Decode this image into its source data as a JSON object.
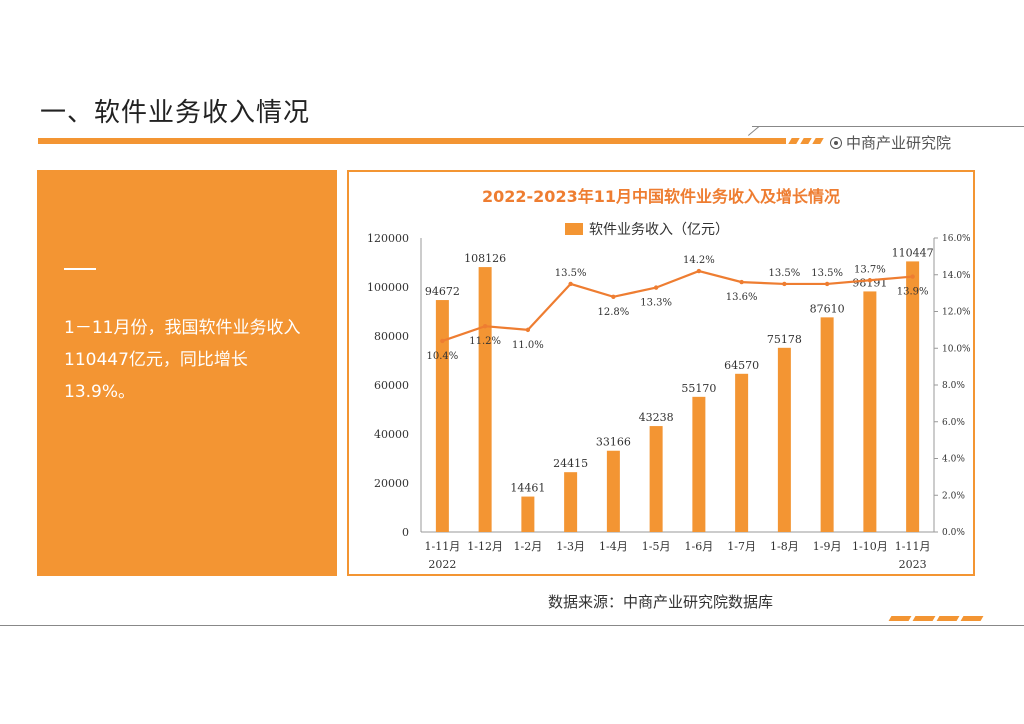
{
  "page": {
    "title": "一、软件业务收入情况",
    "logo_text": "中商产业研究院",
    "summary": "1－11月份，我国软件业务收入110447亿元，同比增长13.9%。",
    "source": "数据来源：中商产业研究院数据库",
    "accent_color": "#f39533"
  },
  "chart_data": {
    "type": "bar",
    "title": "2022-2023年11月中国软件业务收入及增长情况",
    "categories": [
      "1-11月",
      "1-12月",
      "1-2月",
      "1-3月",
      "1-4月",
      "1-5月",
      "1-6月",
      "1-7月",
      "1-8月",
      "1-9月",
      "1-10月",
      "1-11月"
    ],
    "year_labels": [
      "2022",
      "2023"
    ],
    "series": [
      {
        "name": "软件业务收入（亿元）",
        "type": "bar",
        "axis": "left",
        "color": "#f39533",
        "values": [
          94672,
          108126,
          14461,
          24415,
          33166,
          43238,
          55170,
          64570,
          75178,
          87610,
          98191,
          110447
        ]
      },
      {
        "type": "line",
        "axis": "right",
        "color": "#ee7d31",
        "values": [
          10.4,
          11.2,
          11.0,
          13.5,
          12.8,
          13.3,
          14.2,
          13.6,
          13.5,
          13.5,
          13.7,
          13.9
        ],
        "labels": [
          "10.4%",
          "11.2%",
          "11.0%",
          "13.5%",
          "12.8%",
          "13.3%",
          "14.2%",
          "13.6%",
          "13.5%",
          "13.5%",
          "13.7%",
          "13.9%"
        ]
      }
    ],
    "ylim": [
      0,
      120000
    ],
    "y_ticks": [
      "0",
      "20000",
      "40000",
      "60000",
      "80000",
      "100000",
      "120000"
    ],
    "y2lim": [
      0,
      16
    ],
    "y2_ticks": [
      "0.0%",
      "2.0%",
      "4.0%",
      "6.0%",
      "8.0%",
      "10.0%",
      "12.0%",
      "14.0%",
      "16.0%"
    ],
    "legend_position": "top-center",
    "grid": false
  }
}
